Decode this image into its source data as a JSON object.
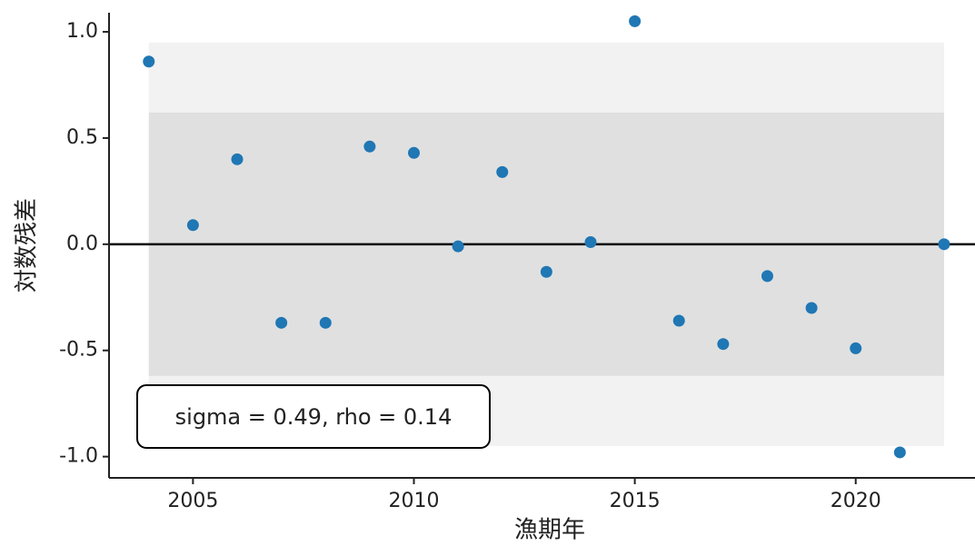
{
  "chart_data": {
    "type": "scatter",
    "x_label": "漁期年",
    "y_label": "対数残差",
    "x": [
      2004,
      2005,
      2006,
      2007,
      2008,
      2009,
      2010,
      2011,
      2012,
      2013,
      2014,
      2015,
      2016,
      2017,
      2018,
      2019,
      2020,
      2021,
      2022
    ],
    "series": [
      {
        "color": "#1f77b4",
        "values": [
          0.86,
          0.09,
          0.4,
          -0.37,
          -0.37,
          0.46,
          0.43,
          -0.01,
          0.34,
          -0.13,
          0.01,
          1.05,
          -0.36,
          -0.47,
          -0.15,
          -0.3,
          -0.49,
          -0.98,
          0.0
        ]
      }
    ],
    "bands": [
      {
        "x": [
          2004,
          2022
        ],
        "lower": -0.95,
        "upper": 0.95,
        "color": "#f2f2f2"
      },
      {
        "x": [
          2004,
          2022
        ],
        "lower": -0.62,
        "upper": 0.62,
        "color": "#e0e0e0"
      }
    ],
    "hline": 0,
    "annotation": "sigma = 0.49, rho = 0.14",
    "xlim": [
      2003.1,
      2022.7
    ],
    "xticks": [
      2005,
      2010,
      2015,
      2020
    ],
    "ylim": [
      -1.1,
      1.09
    ],
    "yticks": [
      {
        "value": -1.0,
        "label": "-1.0"
      },
      -0.5,
      {
        "value": 0.0,
        "label": "0.0"
      },
      0.5,
      {
        "value": 1.0,
        "label": "1.0"
      }
    ],
    "grid": false
  }
}
